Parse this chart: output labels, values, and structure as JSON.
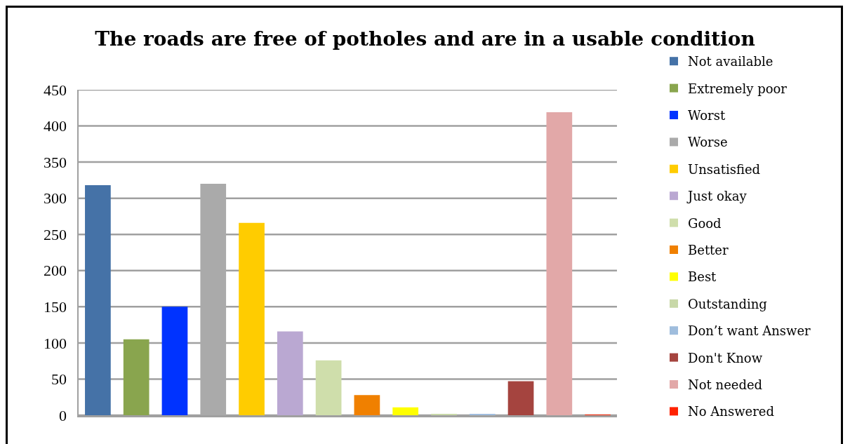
{
  "chart_data": {
    "type": "bar",
    "title": "The roads are free of potholes and are in a usable condition",
    "categories": [
      null,
      null,
      null,
      null,
      null,
      null,
      null,
      null,
      null,
      null,
      null,
      null,
      null,
      null
    ],
    "series": [
      {
        "name": "Not available",
        "color": "#4572a7",
        "values": [
          318,
          null,
          null,
          null,
          null,
          null,
          null,
          null,
          null,
          null,
          null,
          null,
          null,
          null
        ]
      },
      {
        "name": "Extremely poor",
        "color": "#89a54e",
        "values": [
          null,
          105,
          null,
          null,
          null,
          null,
          null,
          null,
          null,
          null,
          null,
          null,
          null,
          null
        ]
      },
      {
        "name": "Worst",
        "color": "#0033ff",
        "values": [
          null,
          null,
          150,
          null,
          null,
          null,
          null,
          null,
          null,
          null,
          null,
          null,
          null,
          null
        ]
      },
      {
        "name": "Worse",
        "color": "#aaaaaa",
        "values": [
          null,
          null,
          null,
          320,
          null,
          null,
          null,
          null,
          null,
          null,
          null,
          null,
          null,
          null
        ]
      },
      {
        "name": "Unsatisfied",
        "color": "#ffcc00",
        "values": [
          null,
          null,
          null,
          null,
          266,
          null,
          null,
          null,
          null,
          null,
          null,
          null,
          null,
          null
        ]
      },
      {
        "name": "Just okay",
        "color": "#baa8d2",
        "values": [
          null,
          null,
          null,
          null,
          null,
          116,
          null,
          null,
          null,
          null,
          null,
          null,
          null,
          null
        ]
      },
      {
        "name": "Good",
        "color": "#cfdeab",
        "values": [
          null,
          null,
          null,
          null,
          null,
          null,
          76,
          null,
          null,
          null,
          null,
          null,
          null,
          null
        ]
      },
      {
        "name": "Better",
        "color": "#f08000",
        "values": [
          null,
          null,
          null,
          null,
          null,
          null,
          null,
          28,
          null,
          null,
          null,
          null,
          null,
          null
        ]
      },
      {
        "name": "Best",
        "color": "#ffff00",
        "values": [
          null,
          null,
          null,
          null,
          null,
          null,
          null,
          null,
          11,
          null,
          null,
          null,
          null,
          null
        ]
      },
      {
        "name": "Outstanding",
        "color": "#c8d8a8",
        "values": [
          null,
          null,
          null,
          null,
          null,
          null,
          null,
          null,
          null,
          2,
          null,
          null,
          null,
          null
        ]
      },
      {
        "name": "Don’t want Answer",
        "color": "#9fbddd",
        "values": [
          null,
          null,
          null,
          null,
          null,
          null,
          null,
          null,
          null,
          null,
          2,
          null,
          null,
          null
        ]
      },
      {
        "name": "Don't Know",
        "color": "#a5443f",
        "values": [
          null,
          null,
          null,
          null,
          null,
          null,
          null,
          null,
          null,
          null,
          null,
          47,
          null,
          null
        ]
      },
      {
        "name": "Not needed",
        "color": "#e2a8a8",
        "values": [
          null,
          null,
          null,
          null,
          null,
          null,
          null,
          null,
          null,
          null,
          null,
          null,
          419,
          null
        ]
      },
      {
        "name": "No Answered",
        "color": "#ff2200",
        "values": [
          null,
          null,
          null,
          null,
          null,
          null,
          null,
          null,
          null,
          null,
          null,
          null,
          null,
          1
        ]
      }
    ],
    "ylim": [
      0,
      450
    ],
    "yticks": [
      0,
      50,
      100,
      150,
      200,
      250,
      300,
      350,
      400,
      450
    ],
    "grid": "y",
    "legend": "right",
    "tick_labels": "y"
  }
}
